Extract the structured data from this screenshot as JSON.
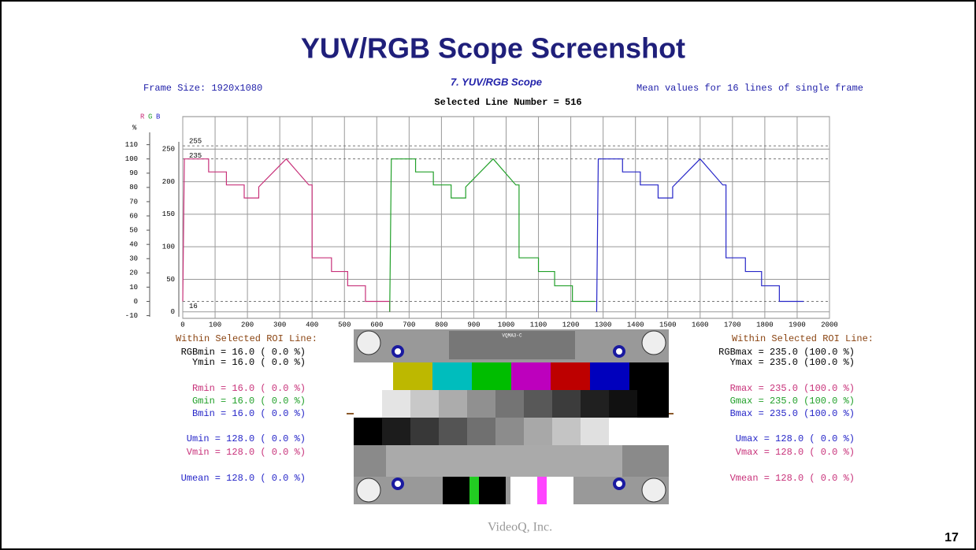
{
  "header": {
    "title": "YUV/RGB Scope Screenshot"
  },
  "scope": {
    "frame_size": "Frame Size: 1920x1080",
    "panel_title": "7. YUV/RGB Scope",
    "line_number": "Selected Line Number =  516",
    "mean_note": "Mean values for 16 lines of single frame",
    "percent_unit": "%"
  },
  "chart_data": {
    "type": "line",
    "xlim": [
      0,
      2000
    ],
    "xticks": [
      0,
      100,
      200,
      300,
      400,
      500,
      600,
      700,
      800,
      900,
      1000,
      1100,
      1200,
      1300,
      1400,
      1500,
      1600,
      1700,
      1800,
      1900,
      2000
    ],
    "ylim": [
      -10,
      300
    ],
    "yticks": [
      0,
      50,
      100,
      150,
      200,
      250
    ],
    "y2lim": [
      -11.9,
      129.7
    ],
    "y2ticks": [
      -10,
      0,
      10,
      20,
      30,
      40,
      50,
      60,
      70,
      80,
      90,
      100,
      110
    ],
    "hlines": [
      255,
      235,
      16
    ],
    "grid": true,
    "series": [
      {
        "name": "R",
        "color": "#c8327a",
        "x": [
          0,
          5,
          80,
          80,
          135,
          135,
          190,
          190,
          235,
          235,
          320,
          390,
          400,
          400,
          460,
          460,
          510,
          510,
          565,
          565,
          640,
          640
        ],
        "values": [
          16,
          235,
          235,
          215,
          215,
          195,
          195,
          175,
          175,
          192,
          235,
          195,
          195,
          83,
          83,
          62,
          62,
          40,
          40,
          16,
          16,
          0
        ]
      },
      {
        "name": "G",
        "color": "#22a02a",
        "x": [
          640,
          645,
          720,
          720,
          775,
          775,
          830,
          830,
          875,
          875,
          960,
          1030,
          1040,
          1040,
          1100,
          1100,
          1150,
          1150,
          1205,
          1205,
          1275
        ],
        "values": [
          0,
          235,
          235,
          215,
          215,
          195,
          195,
          175,
          175,
          192,
          235,
          195,
          195,
          83,
          83,
          62,
          62,
          40,
          40,
          16,
          16
        ]
      },
      {
        "name": "B",
        "color": "#2626c8",
        "x": [
          1280,
          1285,
          1360,
          1360,
          1415,
          1415,
          1470,
          1470,
          1515,
          1515,
          1600,
          1670,
          1680,
          1680,
          1740,
          1740,
          1790,
          1790,
          1845,
          1845,
          1920
        ],
        "values": [
          0,
          235,
          235,
          215,
          215,
          195,
          195,
          175,
          175,
          192,
          235,
          195,
          195,
          83,
          83,
          62,
          62,
          40,
          40,
          16,
          16
        ]
      }
    ]
  },
  "stats_left": {
    "heading": "Within Selected ROI Line:",
    "lines": [
      "RGBmin = 16.0 ( 0.0 %)",
      "Ymin = 16.0 ( 0.0 %)",
      "Rmin = 16.0 ( 0.0 %)",
      "Gmin = 16.0 ( 0.0 %)",
      "Bmin = 16.0 ( 0.0 %)",
      "Umin = 128.0 ( 0.0 %)",
      "Vmin = 128.0 ( 0.0 %)",
      "Umean = 128.0 ( 0.0 %)"
    ]
  },
  "stats_right": {
    "heading": "Within Selected ROI Line:",
    "lines": [
      "RGBmax = 235.0 (100.0 %)",
      "Ymax = 235.0 (100.0 %)",
      "Rmax = 235.0 (100.0 %)",
      "Gmax = 235.0 (100.0 %)",
      "Bmax = 235.0 (100.0 %)",
      "Umax = 128.0 ( 0.0 %)",
      "Vmax = 128.0 ( 0.0 %)",
      "Vmean = 128.0 ( 0.0 %)"
    ]
  },
  "pattern": {
    "label": "VQMA3-C"
  },
  "footer": {
    "company": "VideoQ, Inc.",
    "page": "17"
  }
}
